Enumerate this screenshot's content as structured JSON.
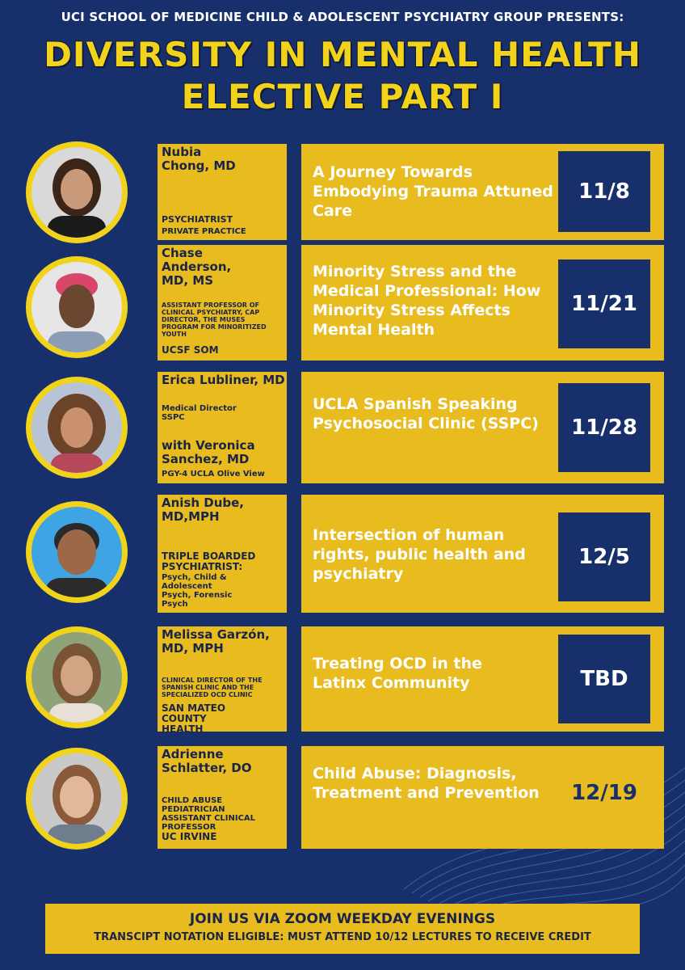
{
  "header": {
    "presenter_line": "UCI SCHOOL OF MEDICINE CHILD & ADOLESCENT PSYCHIATRY GROUP PRESENTS:",
    "title_line1": "DIVERSITY IN MENTAL HEALTH",
    "title_line2": "ELECTIVE PART I"
  },
  "colors": {
    "background": "#17306b",
    "gold": "#e8bb1f",
    "title_yellow": "#f2d31c",
    "dark_text": "#1a2447"
  },
  "sessions": [
    {
      "name": "Nubia Chong, MD",
      "role": "PSYCHIATRIST",
      "org": "PRIVATE PRACTICE",
      "topic": "A Journey Towards Embodying Trauma Attuned Care",
      "date": "11/8"
    },
    {
      "name": "Chase Anderson, MD, MS",
      "role": "ASSISTANT PROFESSOR OF CLINICAL PSYCHIATRY, CAP DIRECTOR, THE MUSES PROGRAM FOR MINORITIZED YOUTH",
      "org": "UCSF SOM",
      "topic": "Minority Stress and the Medical Professional: How Minority Stress Affects Mental Health",
      "date": "11/21"
    },
    {
      "name": "Erica Lubliner, MD",
      "role": "Medical Director SSPC",
      "co_presenter": "with Veronica Sanchez, MD",
      "co_role": "PGY-4 UCLA Olive View",
      "topic": "UCLA Spanish Speaking Psychosocial Clinic (SSPC)",
      "date": "11/28"
    },
    {
      "name": "Anish Dube, MD,MPH",
      "role": "TRIPLE BOARDED PSYCHIATRIST:",
      "sub_role": "Psych, Child & Adolescent Psych, Forensic Psych",
      "topic": "Intersection of human rights, public health and psychiatry",
      "date": "12/5"
    },
    {
      "name": "Melissa Garzón, MD, MPH",
      "role": "CLINICAL DIRECTOR OF THE SPANISH CLINIC AND THE SPECIALIZED OCD CLINIC",
      "org": "SAN MATEO COUNTY HEALTH",
      "topic": "Treating OCD in the Latinx Community",
      "date": "TBD"
    },
    {
      "name": "Adrienne Schlatter, DO",
      "role": "CHILD ABUSE PEDIATRICIAN ASSISTANT CLINICAL PROFESSOR",
      "org": "UC IRVINE",
      "topic": "Child Abuse: Diagnosis, Treatment and Prevention",
      "date": "12/19"
    }
  ],
  "footer": {
    "line1": "JOIN US VIA ZOOM WEEKDAY EVENINGS",
    "line2": "TRANSCIPT NOTATION ELIGIBLE: MUST ATTEND 10/12 LECTURES TO RECEIVE CREDIT"
  }
}
